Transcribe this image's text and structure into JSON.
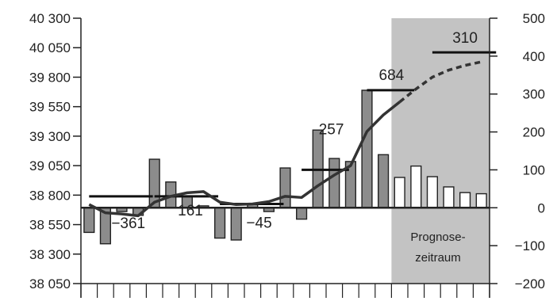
{
  "chart_data": {
    "type": "bar",
    "title": "",
    "left_axis": {
      "ylim": [
        38050,
        40300
      ],
      "ticks": [
        38050,
        38300,
        38550,
        38800,
        39050,
        39300,
        39550,
        39800,
        40050,
        40300
      ],
      "tick_labels": [
        "38 050",
        "38 300",
        "38 550",
        "38 800",
        "39 050",
        "39 300",
        "39 550",
        "39 800",
        "40 050",
        "40 300"
      ]
    },
    "right_axis": {
      "ylim": [
        -200,
        500
      ],
      "ticks": [
        -200,
        -100,
        0,
        100,
        200,
        300,
        400,
        500
      ],
      "tick_labels": [
        "−200",
        "−100",
        "0",
        "100",
        "200",
        "300",
        "400",
        "500"
      ]
    },
    "x": [
      1,
      2,
      3,
      4,
      5,
      6,
      7,
      8,
      9,
      10,
      11,
      12,
      13,
      14,
      15,
      16,
      17,
      18,
      19,
      20,
      21,
      22,
      23,
      24,
      25
    ],
    "bars": {
      "values": [
        -65,
        -95,
        -10,
        -20,
        128,
        68,
        30,
        5,
        -80,
        -85,
        10,
        -10,
        105,
        -30,
        205,
        130,
        122,
        310,
        140,
        80,
        110,
        82,
        55,
        40,
        37
      ],
      "forecast_from_index": 19,
      "colors": {
        "actual": "#8c8c8c",
        "forecast": "#ffffff",
        "stroke": "#222222"
      }
    },
    "line": {
      "axis": "left",
      "values": [
        38720,
        38650,
        38640,
        38625,
        38740,
        38790,
        38820,
        38830,
        38740,
        38720,
        38725,
        38745,
        38790,
        38780,
        38880,
        38970,
        39050,
        39340,
        39480,
        39590,
        39700,
        39800,
        39860,
        39900,
        39930
      ],
      "dashed_from_index": 19,
      "color": "#333333"
    },
    "averages": [
      {
        "from": 1,
        "to": 4,
        "value": -361,
        "label": "−361"
      },
      {
        "from": 5,
        "to": 8,
        "value": 161,
        "label": "161"
      },
      {
        "from": 9,
        "to": 12,
        "value": -45,
        "label": "−45"
      },
      {
        "from": 14,
        "to": 16,
        "value": 257,
        "label": "257"
      },
      {
        "from": 18,
        "to": 20,
        "value": 684,
        "label": "684"
      },
      {
        "from": 22,
        "to": 25,
        "value": 310,
        "label": "310"
      }
    ],
    "average_axis_value": [
      30,
      30,
      10,
      100,
      310,
      410
    ],
    "forecast_region": {
      "from": 19.5,
      "to": 25.5,
      "color": "#c3c3c3"
    },
    "forecast_label": [
      "Prognose-",
      "zeitraum"
    ]
  }
}
